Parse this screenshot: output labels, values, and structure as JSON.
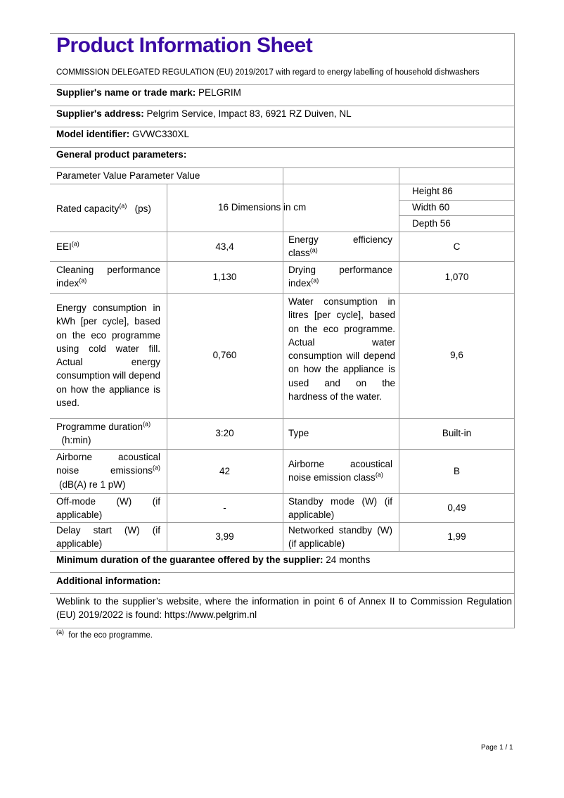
{
  "title": "Product Information Sheet",
  "subtitle": "COMMISSION DELEGATED REGULATION (EU) 2019/2017 with regard to energy labelling of household dishwashers",
  "supplier_name": {
    "label": "Supplier's name or trade mark:",
    "value": "PELGRIM"
  },
  "supplier_address": {
    "label": "Supplier's address:",
    "value": "Pelgrim Service, Impact 83, 6921 RZ Duiven, NL"
  },
  "model": {
    "label": "Model identifier:",
    "value": "GVWC330XL"
  },
  "general": "General product parameters:",
  "table_header": "Parameter Value Parameter Value",
  "sup": "(a)",
  "rows": {
    "rated": {
      "p1": "Rated capacity",
      "p1b": "(ps)",
      "v1": "16 Dimensions in cm",
      "height": "Height 86",
      "width": "Width 60",
      "depth": "Depth 56"
    },
    "eei": {
      "p1": "EEI",
      "v1": "43,4",
      "p2": "Energy efficiency class",
      "v2": "C"
    },
    "cleaning": {
      "p1": "Cleaning performance index",
      "v1": "1,130",
      "p2": "Drying performance index",
      "v2": "1,070"
    },
    "energy": {
      "p1": "Energy consumption in kWh [per cycle], based on the eco programme using cold water fill. Actual energy consumption will depend on how the appliance is used.",
      "v1": "0,760",
      "p2": "Water consumption in litres [per cycle], based on the eco programme. Actual water consumption will depend on how the appliance is used and on the hardness of the water.",
      "v2": "9,6"
    },
    "duration": {
      "p1": "Programme duration",
      "p1b": "(h:min)",
      "v1": "3:20",
      "p2": "Type",
      "v2": "Built-in"
    },
    "noise": {
      "p1": "Airborne acoustical noise emissions",
      "p1b": "(dB(A) re 1 pW)",
      "v1": "42",
      "p2": "Airborne acoustical noise emission class",
      "v2": "B"
    },
    "offmode": {
      "p1": "Off-mode (W) (if applicable)",
      "v1": "-",
      "p2": "Standby mode (W) (if applicable)",
      "v2": "0,49"
    },
    "delay": {
      "p1": "Delay start (W) (if applicable)",
      "v1": "3,99",
      "p2": "Networked standby (W) (if applicable)",
      "v2": "1,99"
    }
  },
  "guarantee": {
    "label": "Minimum duration of the guarantee offered by the supplier:",
    "value": "24 months"
  },
  "additional": "Additional information:",
  "weblink": "Weblink to the supplier’s website, where the information in point 6 of Annex II to Commission Regulation (EU) 2019/2022 is found:  https://www.pelgrim.nl",
  "footnote": {
    "mark": "(a)",
    "text": "for the eco programme."
  },
  "page_number": "Page 1 / 1",
  "colors": {
    "title": "#3a0aa3"
  }
}
